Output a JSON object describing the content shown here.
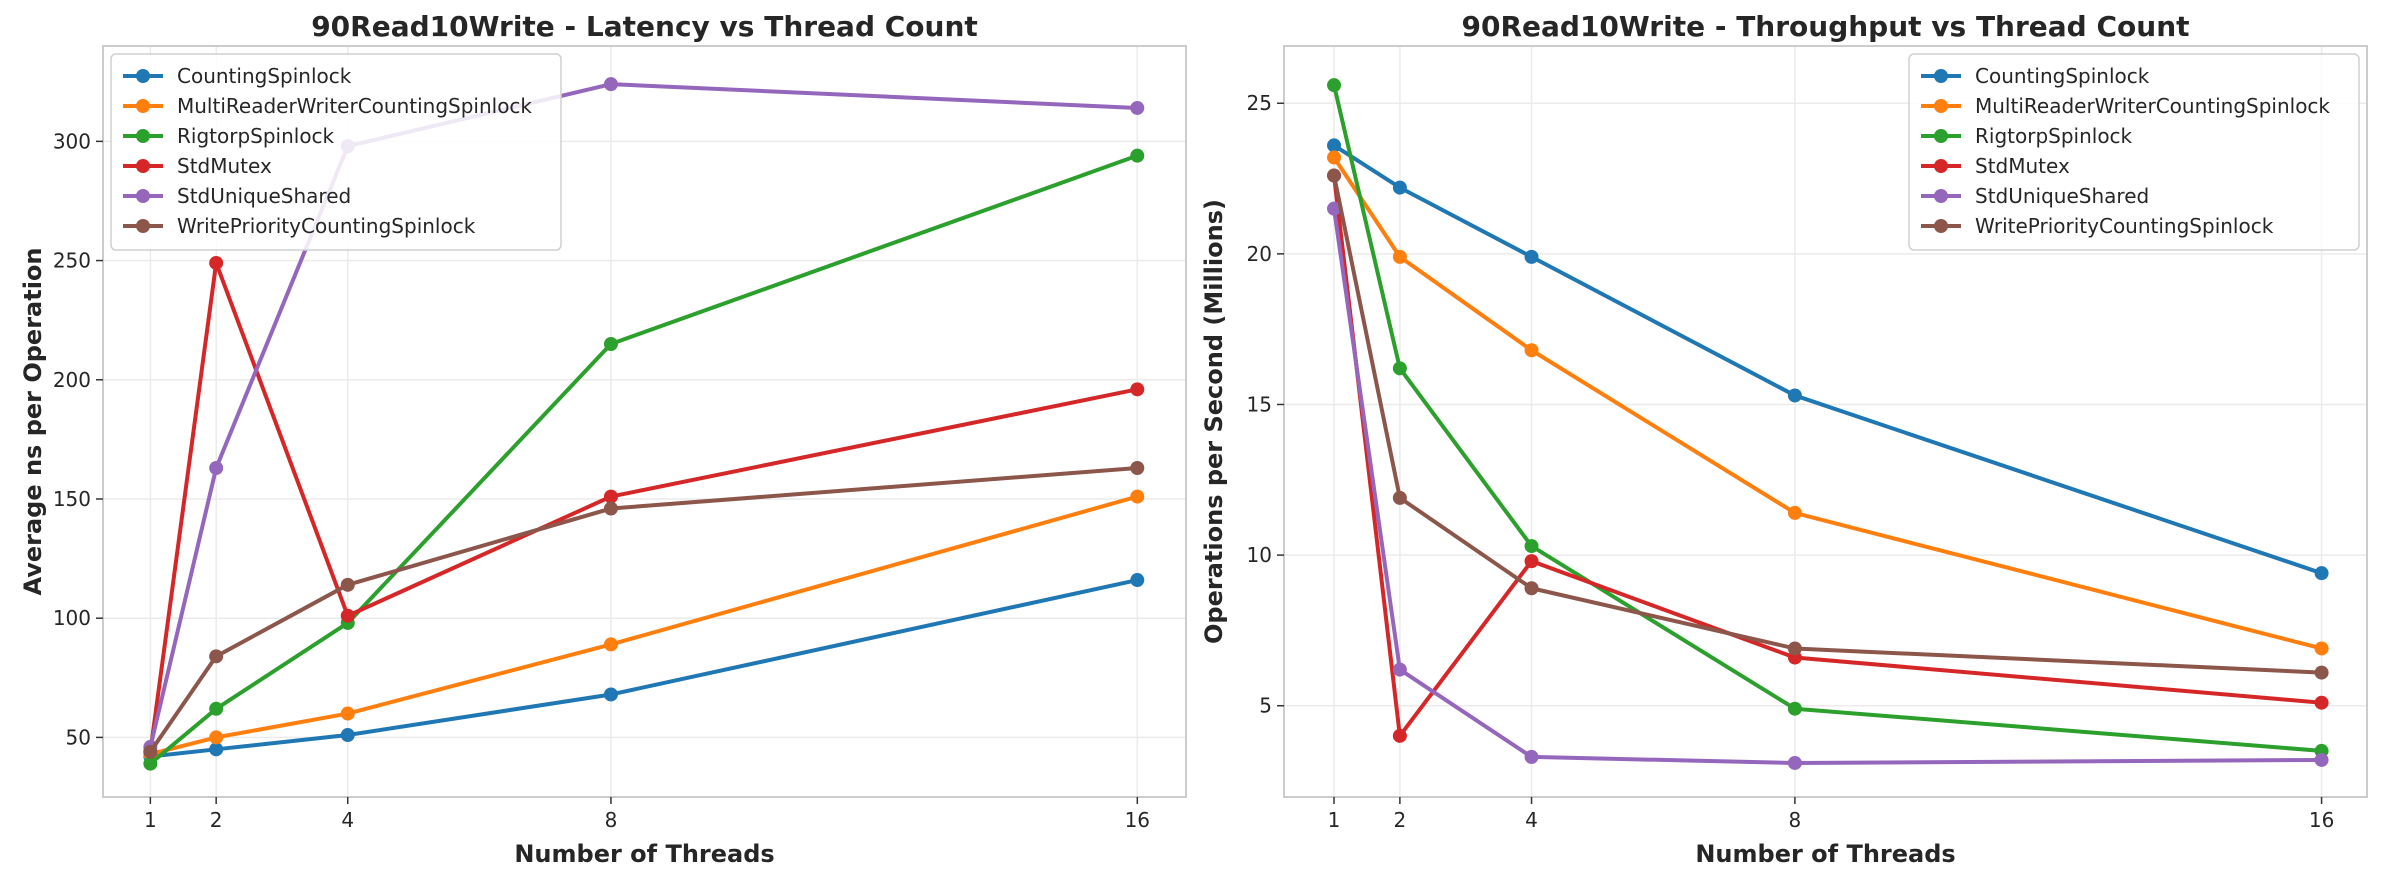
{
  "colors": {
    "CountingSpinlock": "#1f77b4",
    "MultiReaderWriterCountingSpinlock": "#ff7f0e",
    "RigtorpSpinlock": "#2ca02c",
    "StdMutex": "#d62728",
    "StdUniqueShared": "#9467bd",
    "WritePriorityCountingSpinlock": "#8c564b"
  },
  "chart_data": [
    {
      "type": "line",
      "title": "90Read10Write - Latency vs Thread Count",
      "xlabel": "Number of Threads",
      "ylabel": "Average ns per Operation",
      "x": [
        1,
        2,
        4,
        8,
        16
      ],
      "xticks": [
        1,
        2,
        4,
        8,
        16
      ],
      "yticks": [
        50,
        100,
        150,
        200,
        250,
        300
      ],
      "xlim": [
        0.28,
        16.74
      ],
      "ylim": [
        25,
        340
      ],
      "grid": true,
      "legend": "top-left",
      "series": [
        {
          "name": "CountingSpinlock",
          "values": [
            42,
            45,
            51,
            68,
            116
          ]
        },
        {
          "name": "MultiReaderWriterCountingSpinlock",
          "values": [
            43,
            50,
            60,
            89,
            151
          ]
        },
        {
          "name": "RigtorpSpinlock",
          "values": [
            39,
            62,
            98,
            215,
            294
          ]
        },
        {
          "name": "StdMutex",
          "values": [
            44,
            249,
            101,
            151,
            196
          ]
        },
        {
          "name": "StdUniqueShared",
          "values": [
            46,
            163,
            298,
            324,
            314
          ]
        },
        {
          "name": "WritePriorityCountingSpinlock",
          "values": [
            44,
            84,
            114,
            146,
            163
          ]
        }
      ]
    },
    {
      "type": "line",
      "title": "90Read10Write - Throughput vs Thread Count",
      "xlabel": "Number of Threads",
      "ylabel": "Operations per Second (Millions)",
      "x": [
        1,
        2,
        4,
        8,
        16
      ],
      "xticks": [
        1,
        2,
        4,
        8,
        16
      ],
      "yticks": [
        5,
        10,
        15,
        20,
        25
      ],
      "xlim": [
        0.24,
        16.69
      ],
      "ylim": [
        1.97,
        26.9
      ],
      "grid": true,
      "legend": "top-right",
      "series": [
        {
          "name": "CountingSpinlock",
          "values": [
            23.6,
            22.2,
            19.9,
            15.3,
            9.4
          ]
        },
        {
          "name": "MultiReaderWriterCountingSpinlock",
          "values": [
            23.2,
            19.9,
            16.8,
            11.4,
            6.9
          ]
        },
        {
          "name": "RigtorpSpinlock",
          "values": [
            25.6,
            16.2,
            10.3,
            4.9,
            3.5
          ]
        },
        {
          "name": "StdMutex",
          "values": [
            22.6,
            4.0,
            9.8,
            6.6,
            5.1
          ]
        },
        {
          "name": "StdUniqueShared",
          "values": [
            21.5,
            6.2,
            3.3,
            3.1,
            3.2
          ]
        },
        {
          "name": "WritePriorityCountingSpinlock",
          "values": [
            22.6,
            11.9,
            8.9,
            6.9,
            6.1
          ]
        }
      ]
    }
  ]
}
